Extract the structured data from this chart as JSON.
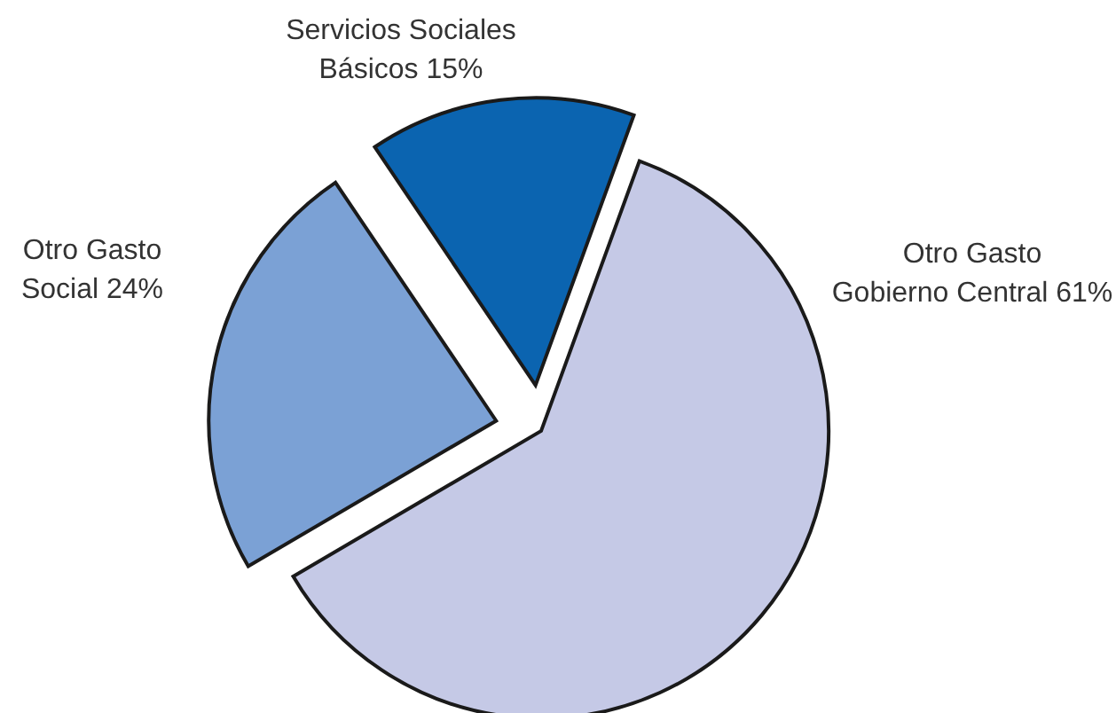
{
  "chart_data": {
    "type": "pie",
    "categories": [
      "Otro Gasto Gobierno Central",
      "Otro Gasto Social",
      "Servicios Sociales Básicos"
    ],
    "values": [
      61,
      24,
      15
    ],
    "colors": [
      "#c5c9e6",
      "#7ba1d5",
      "#0b64b0"
    ],
    "value_labels": [
      "61%",
      "24%",
      "15%"
    ],
    "legend": false
  }
}
